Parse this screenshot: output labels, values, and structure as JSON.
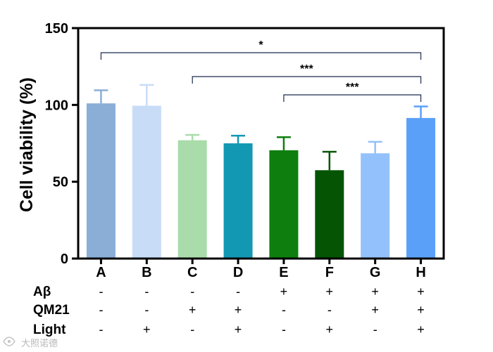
{
  "chart_data": {
    "type": "bar",
    "title": "",
    "xlabel": "",
    "ylabel": "Cell viability (%)",
    "ylim": [
      0,
      150
    ],
    "yticks": [
      0,
      50,
      100,
      150
    ],
    "categories": [
      "A",
      "B",
      "C",
      "D",
      "E",
      "F",
      "G",
      "H"
    ],
    "values": [
      101,
      99.5,
      77,
      75,
      70.5,
      57.5,
      68.5,
      91.5
    ],
    "errors": [
      8.5,
      13.5,
      3.5,
      5,
      8.5,
      12,
      7.5,
      7.5
    ],
    "colors": [
      "#8aaed6",
      "#c8dcf8",
      "#a9dcaa",
      "#1398b4",
      "#0e7f0e",
      "#045404",
      "#93c1fb",
      "#5aa0f8"
    ],
    "error_colors": [
      "#8aaed6",
      "#c8dcf8",
      "#a9dcaa",
      "#1398b4",
      "#0e7f0e",
      "#045404",
      "#93c1fb",
      "#5aa0f8"
    ],
    "significance": [
      {
        "from": "A",
        "to": "H",
        "label": "*"
      },
      {
        "from": "C",
        "to": "H",
        "label": "***"
      },
      {
        "from": "E",
        "to": "H",
        "label": "***"
      }
    ],
    "treatments": [
      {
        "name": "Aβ",
        "signs": [
          "-",
          "-",
          "-",
          "-",
          "+",
          "+",
          "+",
          "+"
        ]
      },
      {
        "name": "QM21",
        "signs": [
          "-",
          "-",
          "+",
          "+",
          "-",
          "-",
          "+",
          "+"
        ]
      },
      {
        "name": "Light",
        "signs": [
          "-",
          "+",
          "-",
          "+",
          "-",
          "+",
          "-",
          "+"
        ]
      }
    ]
  },
  "watermark": "大照诺德"
}
